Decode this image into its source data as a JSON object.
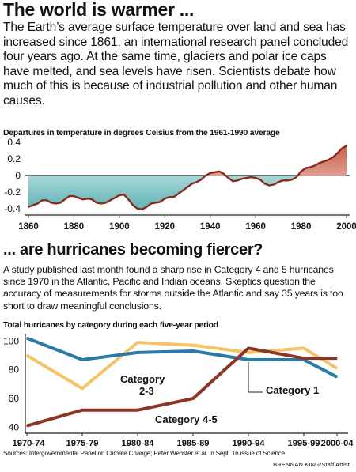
{
  "headline": "The world is warmer ...",
  "intro": "The Earth’s average surface temperature over land and sea has increased since 1861, an international research panel concluded four years ago. At the same time, glaciers and polar ice caps have melted, and sea levels have risen. Scientists debate how much of this is because of industrial pollution and other human causes.",
  "temp_caption": "Departures in temperature in degrees Celsius from the 1961-1990 average",
  "subhead": "... are hurricanes becoming fiercer?",
  "hurricane_text": "A study published last month found a sharp rise in Category 4 and 5 hurricanes since 1970 in the Atlantic, Pacific and Indian oceans. Skeptics question the accuracy of measurements for storms outside the Atlantic and say 35 years is too short to draw meaningful conclusions.",
  "hurr_caption": "Total hurricanes by category during each five-year period",
  "source": "Sources: Intergovernmental Panel on Climate Change; Peter Webster et al. in Sept. 16 issue of Science",
  "credit": "BRENNAN KING/Staff Artist",
  "colors": {
    "temp_line": "#8a2a1e",
    "warm_fill": "#d98a78",
    "cool_fill": "#7fc3c5",
    "cat1": "#2a7aa8",
    "cat23": "#f3c46a",
    "cat45": "#8e3626"
  },
  "chart_data": [
    {
      "type": "area",
      "title": "Departures in temperature in degrees Celsius from the 1961-1990 average",
      "x": [
        1860,
        1862,
        1864,
        1866,
        1868,
        1870,
        1872,
        1874,
        1876,
        1878,
        1880,
        1882,
        1884,
        1886,
        1888,
        1890,
        1892,
        1894,
        1896,
        1898,
        1900,
        1902,
        1904,
        1906,
        1908,
        1910,
        1912,
        1914,
        1916,
        1918,
        1920,
        1922,
        1924,
        1926,
        1928,
        1930,
        1932,
        1934,
        1936,
        1938,
        1940,
        1942,
        1944,
        1946,
        1948,
        1950,
        1952,
        1954,
        1956,
        1958,
        1960,
        1962,
        1964,
        1966,
        1968,
        1970,
        1972,
        1974,
        1976,
        1978,
        1980,
        1982,
        1984,
        1986,
        1988,
        1990,
        1992,
        1994,
        1996,
        1998,
        2000
      ],
      "y": [
        -0.38,
        -0.36,
        -0.34,
        -0.3,
        -0.3,
        -0.33,
        -0.34,
        -0.33,
        -0.29,
        -0.25,
        -0.25,
        -0.27,
        -0.29,
        -0.28,
        -0.29,
        -0.33,
        -0.34,
        -0.33,
        -0.3,
        -0.27,
        -0.24,
        -0.23,
        -0.29,
        -0.36,
        -0.4,
        -0.41,
        -0.38,
        -0.34,
        -0.33,
        -0.32,
        -0.28,
        -0.26,
        -0.26,
        -0.22,
        -0.18,
        -0.14,
        -0.1,
        -0.08,
        -0.05,
        0.0,
        0.03,
        0.04,
        0.05,
        0.02,
        -0.03,
        -0.07,
        -0.06,
        -0.04,
        -0.03,
        -0.02,
        -0.03,
        -0.05,
        -0.1,
        -0.12,
        -0.11,
        -0.08,
        -0.06,
        -0.06,
        -0.05,
        -0.02,
        0.05,
        0.09,
        0.1,
        0.12,
        0.15,
        0.17,
        0.19,
        0.22,
        0.27,
        0.33,
        0.36
      ],
      "xticks": [
        1860,
        1880,
        1900,
        1920,
        1940,
        1960,
        1980,
        2000
      ],
      "yticks": [
        -0.4,
        -0.2,
        0,
        0.2,
        0.4
      ],
      "ytick_labels": [
        "-0.4",
        "-0.2",
        "0",
        "0.2",
        "0.4"
      ],
      "xlim": [
        1860,
        2000
      ],
      "ylim": [
        -0.45,
        0.45
      ],
      "grid": false
    },
    {
      "type": "line",
      "title": "Total hurricanes by category during each five-year period",
      "categories": [
        "1970-74",
        "1975-79",
        "1980-84",
        "1985-89",
        "1990-94",
        "1995-99",
        "2000-04"
      ],
      "series": [
        {
          "name": "Category 1",
          "values": [
            102,
            87,
            92,
            93,
            87,
            87,
            75
          ]
        },
        {
          "name": "Category 2-3",
          "values": [
            90,
            67,
            99,
            97,
            92,
            95,
            81
          ]
        },
        {
          "name": "Category 4-5",
          "values": [
            41,
            52,
            52,
            60,
            95,
            88,
            88
          ]
        }
      ],
      "yticks": [
        40,
        60,
        80,
        100
      ],
      "ylim": [
        37,
        104
      ],
      "grid": false
    }
  ]
}
